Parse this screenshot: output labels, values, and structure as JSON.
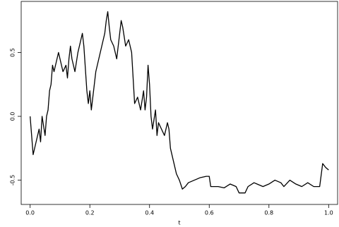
{
  "chart_data": {
    "type": "line",
    "x_label": "t",
    "color": "#000000",
    "x": [
      0,
      0.005,
      0.01,
      0.02,
      0.03,
      0.035,
      0.04,
      0.05,
      0.055,
      0.06,
      0.065,
      0.07,
      0.075,
      0.08,
      0.09,
      0.095,
      0.1,
      0.11,
      0.12,
      0.125,
      0.13,
      0.135,
      0.14,
      0.15,
      0.16,
      0.17,
      0.175,
      0.18,
      0.19,
      0.195,
      0.2,
      0.205,
      0.21,
      0.22,
      0.23,
      0.24,
      0.25,
      0.255,
      0.26,
      0.265,
      0.27,
      0.28,
      0.29,
      0.3,
      0.305,
      0.31,
      0.32,
      0.33,
      0.34,
      0.345,
      0.35,
      0.36,
      0.37,
      0.38,
      0.385,
      0.39,
      0.395,
      0.4,
      0.405,
      0.41,
      0.42,
      0.425,
      0.43,
      0.44,
      0.45,
      0.46,
      0.465,
      0.47,
      0.48,
      0.49,
      0.5,
      0.51,
      0.52,
      0.53,
      0.55,
      0.57,
      0.59,
      0.6,
      0.605,
      0.63,
      0.65,
      0.67,
      0.69,
      0.7,
      0.72,
      0.73,
      0.75,
      0.76,
      0.78,
      0.8,
      0.82,
      0.84,
      0.85,
      0.87,
      0.89,
      0.91,
      0.93,
      0.95,
      0.97,
      0.98,
      0.99,
      1.0
    ],
    "values": [
      0.0,
      -0.15,
      -0.3,
      -0.2,
      -0.1,
      -0.2,
      0.0,
      -0.15,
      0.0,
      0.05,
      0.2,
      0.25,
      0.4,
      0.35,
      0.45,
      0.5,
      0.45,
      0.35,
      0.4,
      0.3,
      0.45,
      0.55,
      0.45,
      0.35,
      0.5,
      0.6,
      0.65,
      0.55,
      0.2,
      0.1,
      0.2,
      0.05,
      0.15,
      0.35,
      0.45,
      0.55,
      0.65,
      0.75,
      0.82,
      0.7,
      0.6,
      0.55,
      0.45,
      0.65,
      0.75,
      0.7,
      0.55,
      0.6,
      0.5,
      0.3,
      0.1,
      0.15,
      0.05,
      0.2,
      0.05,
      0.15,
      0.4,
      0.25,
      0.0,
      -0.1,
      0.05,
      -0.15,
      -0.05,
      -0.1,
      -0.15,
      -0.05,
      -0.1,
      -0.25,
      -0.35,
      -0.45,
      -0.5,
      -0.57,
      -0.55,
      -0.52,
      -0.5,
      -0.48,
      -0.47,
      -0.47,
      -0.55,
      -0.55,
      -0.56,
      -0.53,
      -0.55,
      -0.6,
      -0.6,
      -0.55,
      -0.52,
      -0.53,
      -0.55,
      -0.53,
      -0.5,
      -0.52,
      -0.55,
      -0.5,
      -0.53,
      -0.55,
      -0.52,
      -0.55,
      -0.55,
      -0.37,
      -0.4,
      -0.42
    ],
    "xlim": [
      -0.03,
      1.03
    ],
    "ylim": [
      -0.69,
      0.9
    ],
    "xticks": [
      {
        "value": 0,
        "label": "0.0"
      },
      0.2,
      0.4,
      0.6,
      0.8,
      {
        "value": 1,
        "label": "1.0"
      }
    ],
    "yticks": [
      -0.5,
      {
        "value": 0,
        "label": "0.0"
      },
      0.5
    ]
  }
}
